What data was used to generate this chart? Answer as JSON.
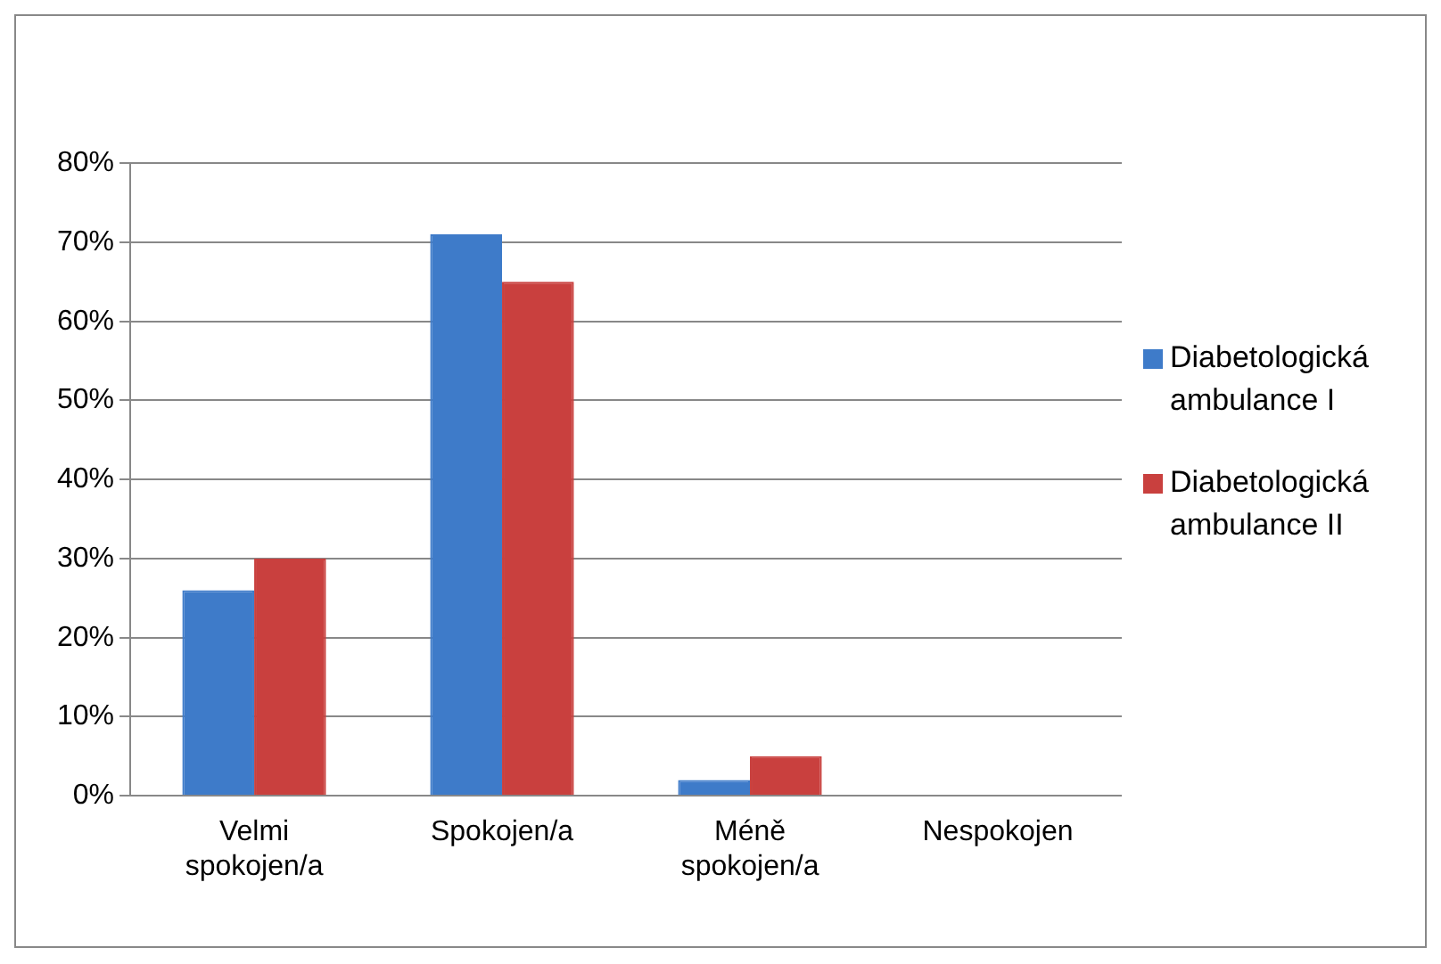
{
  "chart_data": {
    "type": "bar",
    "categories": [
      "Velmi spokojen/a",
      "Spokojen/a",
      "Méně spokojen/a",
      "Nespokojen"
    ],
    "series": [
      {
        "name": "Diabetologická ambulance I",
        "color": "#3e7bc9",
        "values": [
          26,
          71,
          2,
          0
        ]
      },
      {
        "name": "Diabetologická ambulance II",
        "color": "#c9403e",
        "values": [
          30,
          65,
          5,
          0
        ]
      }
    ],
    "ylim": [
      0,
      80
    ],
    "yticks": [
      {
        "value": 0,
        "label": "0%"
      },
      {
        "value": 10,
        "label": "10%"
      },
      {
        "value": 20,
        "label": "20%"
      },
      {
        "value": 30,
        "label": "30%"
      },
      {
        "value": 40,
        "label": "40%"
      },
      {
        "value": 50,
        "label": "50%"
      },
      {
        "value": 60,
        "label": "60%"
      },
      {
        "value": 70,
        "label": "70%"
      },
      {
        "value": 80,
        "label": "80%"
      }
    ],
    "grid": "y",
    "legend": "right"
  }
}
